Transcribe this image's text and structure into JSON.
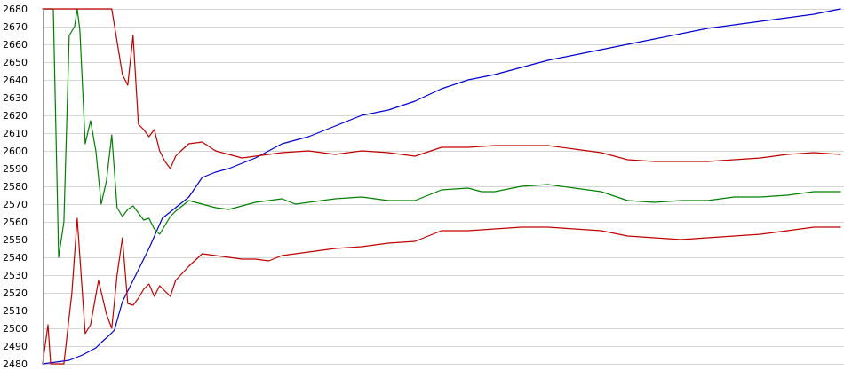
{
  "chart_data": {
    "type": "line",
    "title": "",
    "xlabel": "",
    "ylabel": "",
    "ylim": [
      2480,
      2680
    ],
    "ytick_step": 10,
    "grid": true,
    "legend": "none",
    "series": [
      {
        "color": "#0000cc",
        "x": [
          0,
          5,
          10,
          15,
          20,
          22,
          25,
          27,
          30,
          35,
          40,
          45,
          50,
          55,
          60,
          65,
          70,
          80,
          90,
          100,
          110,
          120,
          130,
          140,
          150,
          160,
          170,
          180,
          190,
          200,
          210,
          220,
          230,
          240,
          250,
          260,
          270,
          280,
          290,
          300
        ],
        "y": [
          2480,
          2481,
          2482,
          2485,
          2489,
          2492,
          2496,
          2499,
          2515,
          2530,
          2545,
          2562,
          2568,
          2574,
          2585,
          2588,
          2590,
          2596,
          2604,
          2608,
          2614,
          2620,
          2623,
          2628,
          2635,
          2640,
          2643,
          2647,
          2651,
          2654,
          2657,
          2660,
          2663,
          2666,
          2669,
          2671,
          2673,
          2675,
          2677,
          2680
        ]
      },
      {
        "color": "#008000",
        "x": [
          0,
          3,
          4,
          5,
          6,
          8,
          10,
          12,
          13,
          14,
          16,
          18,
          20,
          22,
          24,
          26,
          28,
          30,
          32,
          34,
          36,
          38,
          40,
          42,
          44,
          46,
          48,
          50,
          55,
          60,
          65,
          70,
          80,
          90,
          95,
          100,
          110,
          120,
          130,
          140,
          150,
          160,
          165,
          170,
          180,
          190,
          200,
          210,
          220,
          230,
          240,
          250,
          260,
          270,
          280,
          290,
          300
        ],
        "y": [
          2680,
          2680,
          2680,
          2610,
          2540,
          2560,
          2665,
          2670,
          2680,
          2668,
          2604,
          2617,
          2600,
          2570,
          2583,
          2609,
          2568,
          2563,
          2567,
          2569,
          2565,
          2561,
          2562,
          2556,
          2553,
          2558,
          2563,
          2566,
          2572,
          2570,
          2568,
          2567,
          2571,
          2573,
          2570,
          2571,
          2573,
          2574,
          2572,
          2572,
          2578,
          2579,
          2577,
          2577,
          2580,
          2581,
          2579,
          2577,
          2572,
          2571,
          2572,
          2572,
          2574,
          2574,
          2575,
          2577,
          2577
        ]
      },
      {
        "color": "#c00000",
        "x": [
          0,
          5,
          10,
          15,
          20,
          25,
          26,
          30,
          32,
          34,
          36,
          38,
          40,
          42,
          44,
          46,
          48,
          50,
          52,
          55,
          60,
          65,
          70,
          75,
          80,
          85,
          90,
          100,
          110,
          120,
          130,
          140,
          150,
          160,
          170,
          180,
          190,
          200,
          210,
          220,
          230,
          240,
          250,
          260,
          270,
          280,
          290,
          300
        ],
        "y": [
          2680,
          2680,
          2680,
          2680,
          2680,
          2680,
          2680,
          2643,
          2637,
          2665,
          2615,
          2612,
          2608,
          2612,
          2600,
          2594,
          2590,
          2597,
          2600,
          2604,
          2605,
          2600,
          2598,
          2596,
          2597,
          2598,
          2599,
          2600,
          2598,
          2600,
          2599,
          2597,
          2602,
          2602,
          2603,
          2603,
          2603,
          2601,
          2599,
          2595,
          2594,
          2594,
          2594,
          2595,
          2596,
          2598,
          2599,
          2598
        ]
      },
      {
        "color": "#c00000",
        "x": [
          0,
          2,
          3,
          5,
          8,
          11,
          13,
          16,
          18,
          21,
          24,
          26,
          28,
          30,
          32,
          34,
          36,
          38,
          40,
          42,
          44,
          46,
          48,
          50,
          55,
          60,
          65,
          70,
          75,
          80,
          85,
          90,
          100,
          110,
          120,
          130,
          140,
          150,
          160,
          170,
          180,
          190,
          200,
          210,
          220,
          230,
          240,
          250,
          260,
          270,
          280,
          290,
          300
        ],
        "y": [
          2480,
          2502,
          2480,
          2480,
          2480,
          2520,
          2562,
          2497,
          2502,
          2527,
          2508,
          2500,
          2530,
          2551,
          2514,
          2513,
          2517,
          2522,
          2525,
          2518,
          2524,
          2521,
          2518,
          2527,
          2535,
          2542,
          2541,
          2540,
          2539,
          2539,
          2538,
          2541,
          2543,
          2545,
          2546,
          2548,
          2549,
          2555,
          2555,
          2556,
          2557,
          2557,
          2556,
          2555,
          2552,
          2551,
          2550,
          2551,
          2552,
          2553,
          2555,
          2557,
          2557
        ]
      }
    ]
  }
}
